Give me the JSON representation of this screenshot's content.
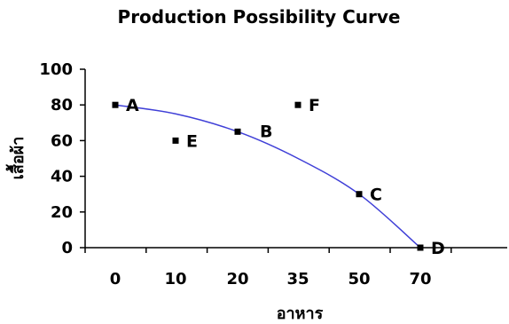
{
  "chart_data": {
    "type": "line",
    "title": "Production Possibility Curve",
    "xlabel": "อาหาร",
    "ylabel": "เสื้อผ้า",
    "x_categories": [
      "0",
      "10",
      "20",
      "35",
      "50",
      "70"
    ],
    "ylim": [
      0,
      100
    ],
    "y_ticks": [
      0,
      20,
      40,
      60,
      80,
      100
    ],
    "curve": [
      {
        "x": "0",
        "y": 80
      },
      {
        "x": "10",
        "y": 75
      },
      {
        "x": "20",
        "y": 65
      },
      {
        "x": "35",
        "y": 50
      },
      {
        "x": "50",
        "y": 30
      },
      {
        "x": "70",
        "y": 0
      }
    ],
    "points": [
      {
        "label": "A",
        "x": "0",
        "y": 80
      },
      {
        "label": "B",
        "x": "20",
        "y": 65
      },
      {
        "label": "C",
        "x": "50",
        "y": 30
      },
      {
        "label": "D",
        "x": "70",
        "y": 0
      },
      {
        "label": "E",
        "x": "10",
        "y": 60
      },
      {
        "label": "F",
        "x": "35",
        "y": 80
      }
    ],
    "grid": false,
    "legend": "none",
    "colors": {
      "curve": "#3f3fd7",
      "marker": "#000000",
      "axis": "#000000"
    }
  }
}
